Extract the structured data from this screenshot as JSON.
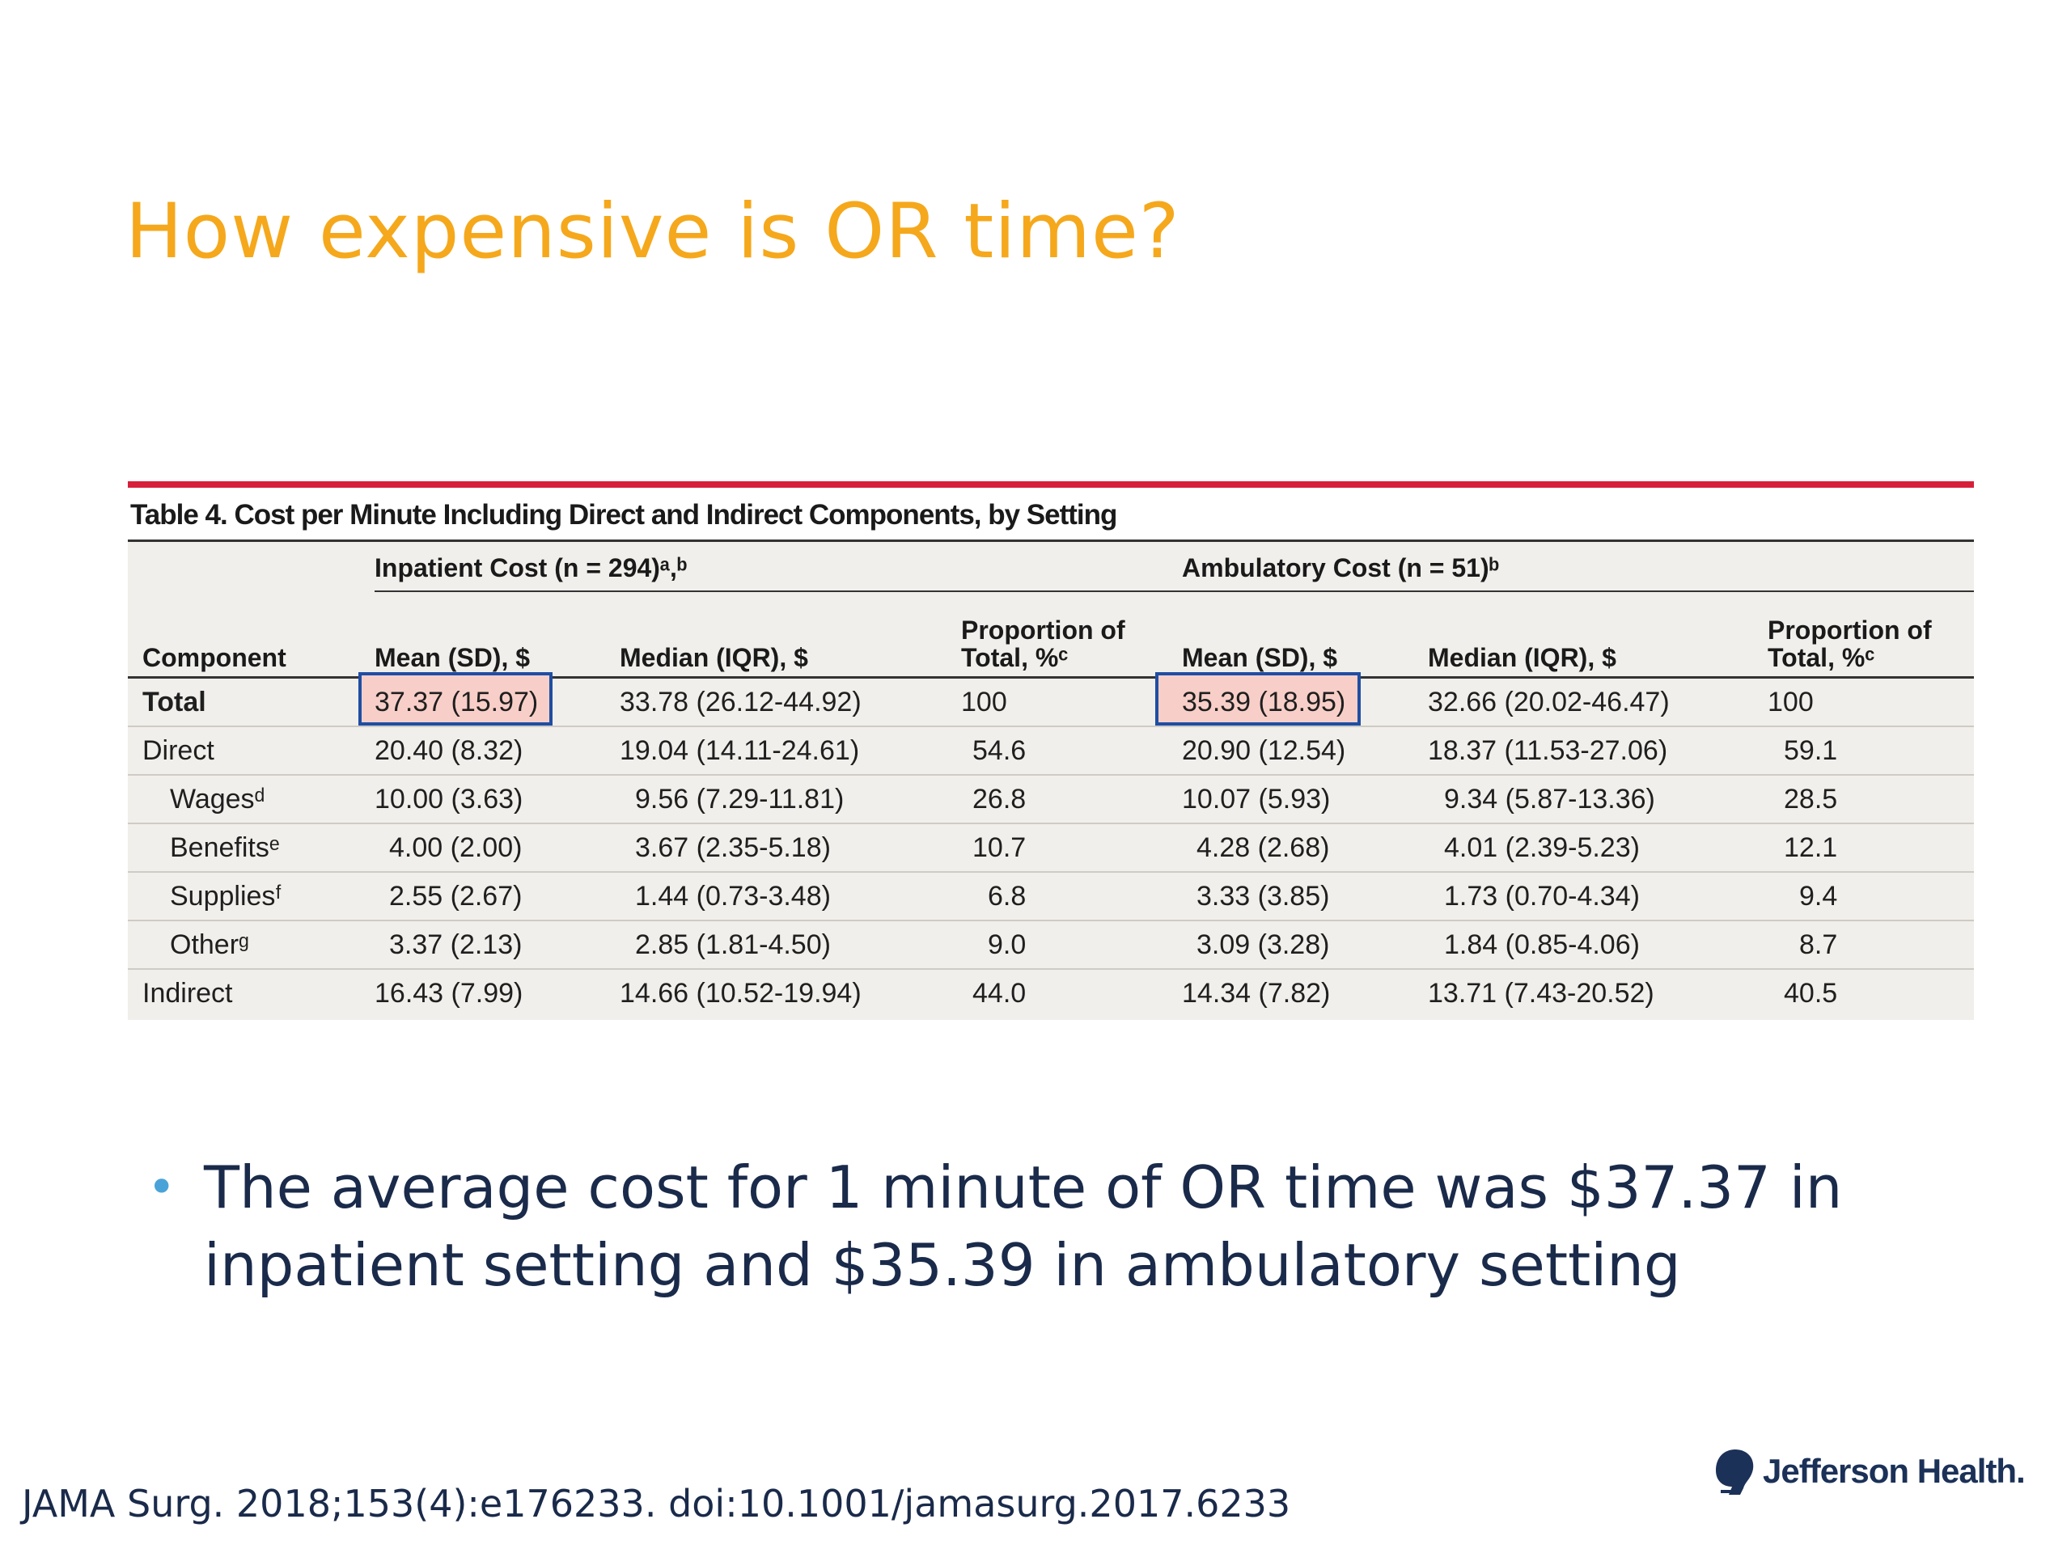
{
  "slide": {
    "title": "How expensive is OR time?",
    "bullet": "The average cost for 1 minute of OR time was $37.37 in inpatient setting and $35.39 in ambulatory setting",
    "citation": "JAMA Surg. 2018;153(4):e176233. doi:10.1001/jamasurg.2017.6233",
    "logo_text": "Jefferson Health."
  },
  "table": {
    "caption": "Table 4. Cost per Minute Including Direct and Indirect Components, by Setting",
    "groups": {
      "inpatient": "Inpatient Cost (n = 294)ᵃ,ᵇ",
      "ambulatory": "Ambulatory Cost (n = 51)ᵇ"
    },
    "columns": {
      "component": "Component",
      "mean": "Mean (SD), $",
      "median": "Median (IQR), $",
      "proportion": "Proportion of Total, %ᶜ"
    },
    "rows": [
      {
        "component": "Total",
        "in_mean": "37.37 (15.97)",
        "in_median": "33.78 (26.12-44.92)",
        "in_prop": "100",
        "am_mean": "35.39 (18.95)",
        "am_median": "32.66 (20.02-46.47)",
        "am_prop": "100"
      },
      {
        "component": "Direct",
        "in_mean": "20.40 (8.32)",
        "in_median": "19.04 (14.11-24.61)",
        "in_prop": "54.6",
        "am_mean": "20.90 (12.54)",
        "am_median": "18.37 (11.53-27.06)",
        "am_prop": "59.1"
      },
      {
        "component": "Wagesᵈ",
        "in_mean": "10.00 (3.63)",
        "in_median": "9.56 (7.29-11.81)",
        "in_prop": "26.8",
        "am_mean": "10.07 (5.93)",
        "am_median": "9.34 (5.87-13.36)",
        "am_prop": "28.5"
      },
      {
        "component": "Benefitsᵉ",
        "in_mean": "4.00 (2.00)",
        "in_median": "3.67 (2.35-5.18)",
        "in_prop": "10.7",
        "am_mean": "4.28 (2.68)",
        "am_median": "4.01 (2.39-5.23)",
        "am_prop": "12.1"
      },
      {
        "component": "Suppliesᶠ",
        "in_mean": "2.55 (2.67)",
        "in_median": "1.44 (0.73-3.48)",
        "in_prop": "6.8",
        "am_mean": "3.33 (3.85)",
        "am_median": "1.73 (0.70-4.34)",
        "am_prop": "9.4"
      },
      {
        "component": "Otherᵍ",
        "in_mean": "3.37 (2.13)",
        "in_median": "2.85 (1.81-4.50)",
        "in_prop": "9.0",
        "am_mean": "3.09 (3.28)",
        "am_median": "1.84 (0.85-4.06)",
        "am_prop": "8.7"
      },
      {
        "component": "Indirect",
        "in_mean": "16.43 (7.99)",
        "in_median": "14.66 (10.52-19.94)",
        "in_prop": "44.0",
        "am_mean": "14.34 (7.82)",
        "am_median": "13.71 (7.43-20.52)",
        "am_prop": "40.5"
      }
    ]
  },
  "colors": {
    "title": "#f5a81c",
    "rule": "#d71f3b",
    "highlight_fill": "#f8cfc8",
    "highlight_border": "#1f4ea3",
    "text": "#1a2a4a",
    "bullet_dot": "#4aa3d8"
  },
  "icons": {
    "logo": "jefferson-logo-icon"
  }
}
